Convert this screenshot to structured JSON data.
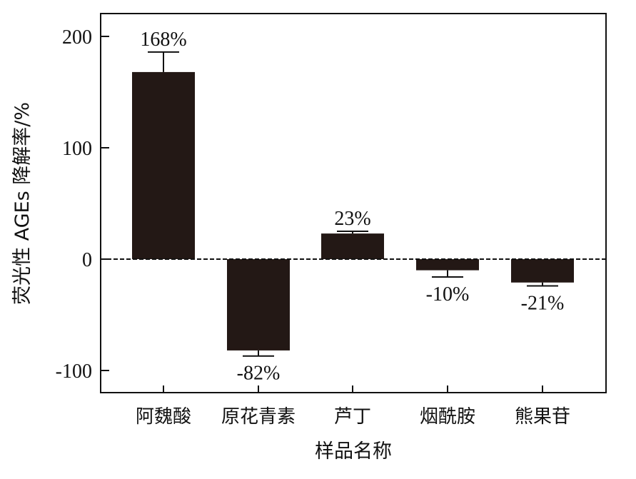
{
  "chart_data": {
    "type": "bar",
    "categories": [
      "阿魏酸",
      "原花青素",
      "芦丁",
      "烟酰胺",
      "熊果苷"
    ],
    "values": [
      168,
      -82,
      23,
      -10,
      -21
    ],
    "error_upper": [
      186,
      -87,
      25,
      -16,
      -24
    ],
    "data_labels": [
      "168%",
      "-82%",
      "23%",
      "-10%",
      "-21%"
    ],
    "xlabel": "样品名称",
    "ylabel": "荧光性 AGEs 降解率/%",
    "ylim": [
      -120,
      200
    ],
    "yticks": [
      200,
      100,
      0,
      -100
    ],
    "ytick_labels": [
      "200",
      "100",
      "0",
      "-100"
    ],
    "bar_color": "#231815",
    "zero_line": "dashed",
    "grid": false,
    "legend": "none"
  }
}
